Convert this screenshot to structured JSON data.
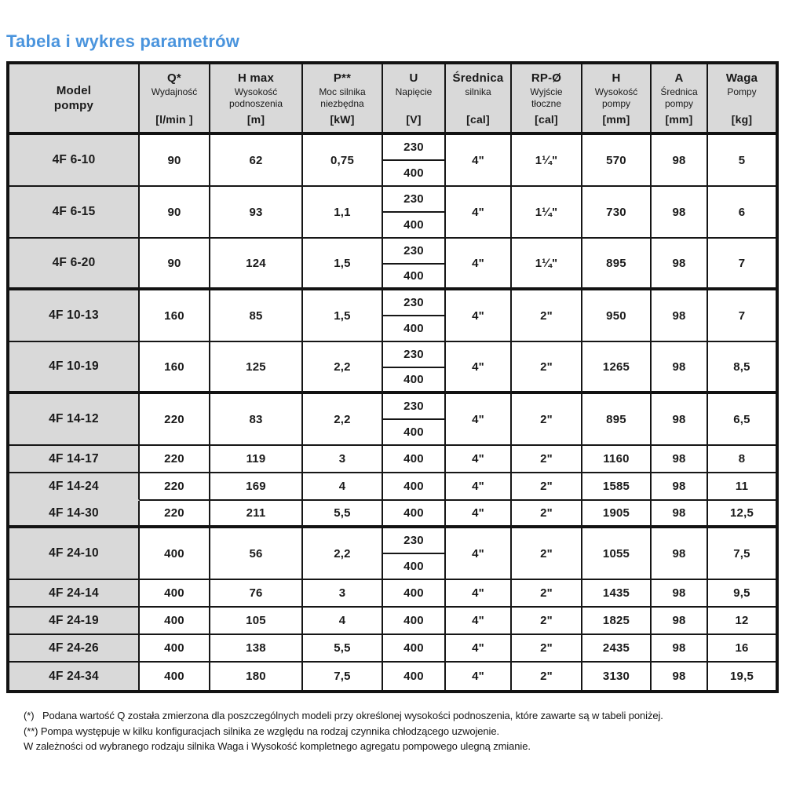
{
  "page": {
    "title": "Tabela i wykres parametrów",
    "title_color": "#4a94dd",
    "header_bg": "#d9d9d9",
    "border_color": "#121212"
  },
  "table": {
    "columns": [
      {
        "key": "model",
        "lines": [
          "Model",
          "pompy"
        ],
        "unit": ""
      },
      {
        "key": "q",
        "lines": [
          "Q*",
          "Wydajność"
        ],
        "unit": "[l/min ]"
      },
      {
        "key": "hmax",
        "lines": [
          "H max",
          "Wysokość",
          "podnoszenia"
        ],
        "unit": "[m]"
      },
      {
        "key": "p",
        "lines": [
          "P**",
          "Moc silnika",
          "niezbędna"
        ],
        "unit": "[kW]"
      },
      {
        "key": "u",
        "lines": [
          "U",
          "Napięcie"
        ],
        "unit": "[V]"
      },
      {
        "key": "motor_dia",
        "lines": [
          "Średnica",
          "silnika"
        ],
        "unit": "[cal]"
      },
      {
        "key": "rp",
        "lines": [
          "RP-Ø",
          "Wyjście",
          "tłoczne"
        ],
        "unit": "[cal]"
      },
      {
        "key": "h",
        "lines": [
          "H",
          "Wysokość",
          "pompy"
        ],
        "unit": "[mm]"
      },
      {
        "key": "a",
        "lines": [
          "A",
          "Średnica",
          "pompy"
        ],
        "unit": "[mm]"
      },
      {
        "key": "waga",
        "lines": [
          "Waga",
          "Pompy"
        ],
        "unit": "[kg]"
      }
    ],
    "groups": [
      {
        "rows": [
          {
            "model": "4F 6-10",
            "q": "90",
            "hmax": "62",
            "p": "0,75",
            "u": [
              "230",
              "400"
            ],
            "motor_dia": "4\"",
            "rp": "1¼\"",
            "h": "570",
            "a": "98",
            "waga": "5"
          },
          {
            "model": "4F 6-15",
            "q": "90",
            "hmax": "93",
            "p": "1,1",
            "u": [
              "230",
              "400"
            ],
            "motor_dia": "4\"",
            "rp": "1¼\"",
            "h": "730",
            "a": "98",
            "waga": "6"
          },
          {
            "model": "4F 6-20",
            "q": "90",
            "hmax": "124",
            "p": "1,5",
            "u": [
              "230",
              "400"
            ],
            "motor_dia": "4\"",
            "rp": "1¼\"",
            "h": "895",
            "a": "98",
            "waga": "7"
          }
        ]
      },
      {
        "rows": [
          {
            "model": "4F 10-13",
            "q": "160",
            "hmax": "85",
            "p": "1,5",
            "u": [
              "230",
              "400"
            ],
            "motor_dia": "4\"",
            "rp": "2\"",
            "h": "950",
            "a": "98",
            "waga": "7"
          },
          {
            "model": "4F 10-19",
            "q": "160",
            "hmax": "125",
            "p": "2,2",
            "u": [
              "230",
              "400"
            ],
            "motor_dia": "4\"",
            "rp": "2\"",
            "h": "1265",
            "a": "98",
            "waga": "8,5"
          }
        ]
      },
      {
        "rows": [
          {
            "model": "4F 14-12",
            "q": "220",
            "hmax": "83",
            "p": "2,2",
            "u": [
              "230",
              "400"
            ],
            "motor_dia": "4\"",
            "rp": "2\"",
            "h": "895",
            "a": "98",
            "waga": "6,5"
          },
          {
            "model": "4F 14-17",
            "q": "220",
            "hmax": "119",
            "p": "3",
            "u": [
              "400"
            ],
            "motor_dia": "4\"",
            "rp": "2\"",
            "h": "1160",
            "a": "98",
            "waga": "8"
          },
          {
            "model": "4F 14-24",
            "q": "220",
            "hmax": "169",
            "p": "4",
            "u": [
              "400"
            ],
            "motor_dia": "4\"",
            "rp": "2\"",
            "h": "1585",
            "a": "98",
            "waga": "11"
          },
          {
            "model": "4F 14-30",
            "q": "220",
            "hmax": "211",
            "p": "5,5",
            "u": [
              "400"
            ],
            "motor_dia": "4\"",
            "rp": "2\"",
            "h": "1905",
            "a": "98",
            "waga": "12,5",
            "model_joined_with_prev": true
          }
        ]
      },
      {
        "rows": [
          {
            "model": "4F 24-10",
            "q": "400",
            "hmax": "56",
            "p": "2,2",
            "u": [
              "230",
              "400"
            ],
            "motor_dia": "4\"",
            "rp": "2\"",
            "h": "1055",
            "a": "98",
            "waga": "7,5"
          },
          {
            "model": "4F 24-14",
            "q": "400",
            "hmax": "76",
            "p": "3",
            "u": [
              "400"
            ],
            "motor_dia": "4\"",
            "rp": "2\"",
            "h": "1435",
            "a": "98",
            "waga": "9,5"
          },
          {
            "model": "4F 24-19",
            "q": "400",
            "hmax": "105",
            "p": "4",
            "u": [
              "400"
            ],
            "motor_dia": "4\"",
            "rp": "2\"",
            "h": "1825",
            "a": "98",
            "waga": "12"
          },
          {
            "model": "4F 24-26",
            "q": "400",
            "hmax": "138",
            "p": "5,5",
            "u": [
              "400"
            ],
            "motor_dia": "4\"",
            "rp": "2\"",
            "h": "2435",
            "a": "98",
            "waga": "16"
          },
          {
            "model": "4F 24-34",
            "q": "400",
            "hmax": "180",
            "p": "7,5",
            "u": [
              "400"
            ],
            "motor_dia": "4\"",
            "rp": "2\"",
            "h": "3130",
            "a": "98",
            "waga": "19,5"
          }
        ]
      }
    ]
  },
  "footnotes": [
    "(*)   Podana wartość Q została zmierzona dla poszczególnych modeli przy określonej wysokości podnoszenia, które zawarte są w tabeli poniżej.",
    "(**) Pompa występuje w kilku konfiguracjach silnika ze względu na rodzaj czynnika chłodzącego uzwojenie.",
    "W zależności od wybranego rodzaju silnika Waga i Wysokość kompletnego agregatu pompowego ulegną zmianie."
  ]
}
